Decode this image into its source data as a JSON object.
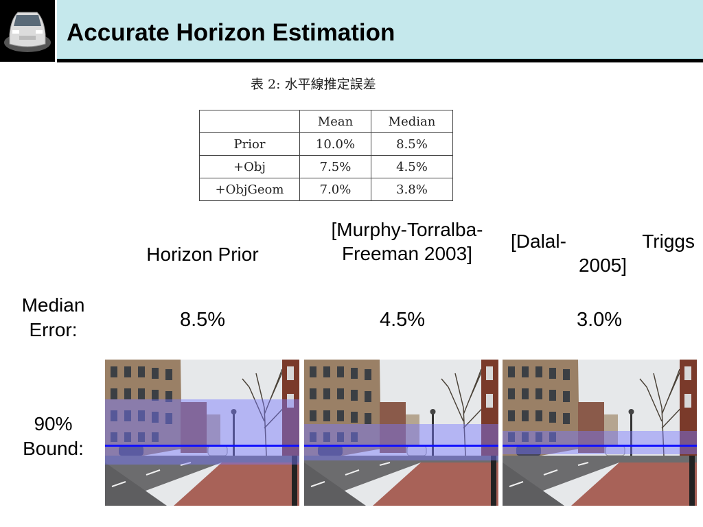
{
  "slide": {
    "title": "Accurate Horizon Estimation"
  },
  "table": {
    "caption": "表 2: 水平線推定誤差",
    "header": [
      "",
      "Mean",
      "Median"
    ],
    "rows": [
      {
        "label": "Prior",
        "mean": "10.0%",
        "median": "8.5%"
      },
      {
        "label": "+Obj",
        "mean": "7.5%",
        "median": "4.5%"
      },
      {
        "label": "+ObjGeom",
        "mean": "7.0%",
        "median": "3.8%"
      }
    ]
  },
  "columns": [
    {
      "line1": "Horizon Prior",
      "line2": ""
    },
    {
      "line1": "[Murphy-Torralba-",
      "line2": "Freeman 2003]"
    },
    {
      "line1a": "[Dalal-",
      "line1b": "Triggs",
      "line2": "2005]"
    }
  ],
  "row_labels": {
    "median_line1": "Median",
    "median_line2": "Error:",
    "bound_line1": "90%",
    "bound_line2": "Bound:"
  },
  "median_errors": [
    "8.5%",
    "4.5%",
    "3.0%"
  ],
  "bounds": [
    {
      "band_top_frac": 0.27,
      "band_bottom_frac": 0.72,
      "horizon_frac": 0.58
    },
    {
      "band_top_frac": 0.44,
      "band_bottom_frac": 0.69,
      "horizon_frac": 0.58
    },
    {
      "band_top_frac": 0.49,
      "band_bottom_frac": 0.65,
      "horizon_frac": 0.58
    }
  ],
  "colors": {
    "title_bg": "#c5e8ec",
    "band": "#7878ff",
    "horizon_line": "#1010ff"
  }
}
